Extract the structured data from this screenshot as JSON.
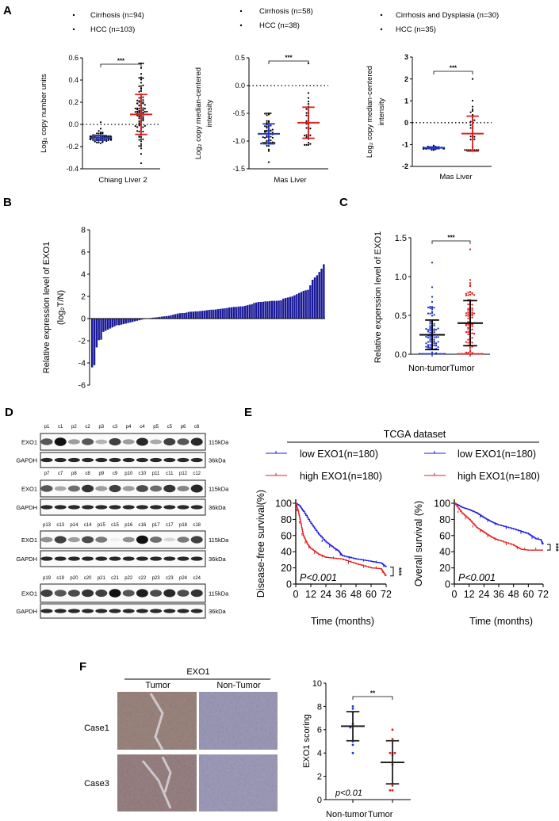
{
  "panel_labels": {
    "A": "A",
    "B": "B",
    "C": "C",
    "D": "D",
    "E": "E",
    "F": "F"
  },
  "chart_data": [
    {
      "id": "A1",
      "type": "scatter",
      "ylabel": "Log₂ copy number units",
      "xlabel": "Chiang Liver 2",
      "ylim": [
        -0.4,
        0.6
      ],
      "yticks": [
        0.6,
        0.4,
        0.2,
        0.0,
        -0.2,
        -0.4
      ],
      "ytick_labels": [
        "0.6",
        "0.4",
        "0.2",
        "0.0",
        "-0.2",
        "-0.4"
      ],
      "reference_line": 0,
      "significance": "***",
      "groups": [
        {
          "name": "Cirrhosis (n=94)",
          "n": 94,
          "mean": -0.12,
          "sd": 0.02,
          "min": -0.17,
          "max": 0.02,
          "bar_color": "#2233cc"
        },
        {
          "name": "HCC (n=103)",
          "n": 103,
          "mean": 0.09,
          "sd": 0.18,
          "min": -0.35,
          "max": 0.55,
          "bar_color": "#e02020"
        }
      ]
    },
    {
      "id": "A2",
      "type": "scatter",
      "ylabel": [
        "Log₂ copy median-centered",
        "intensity"
      ],
      "xlabel": "Mas Liver",
      "ylim": [
        -1.5,
        0.5
      ],
      "yticks": [
        0.5,
        0.0,
        -0.5,
        -1.0,
        -1.5
      ],
      "ytick_labels": [
        "0.5",
        "0.0",
        "-0.5",
        "-1.0",
        "-1.5"
      ],
      "reference_line": 0,
      "significance": "***",
      "groups": [
        {
          "name": "Cirrhosis (n=58)",
          "n": 58,
          "mean": -0.87,
          "sd": 0.18,
          "min": -1.38,
          "max": -0.5,
          "bar_color": "#2233cc"
        },
        {
          "name": "HCC (n=38)",
          "n": 38,
          "mean": -0.67,
          "sd": 0.28,
          "min": -1.07,
          "max": 0.4,
          "bar_color": "#e02020"
        }
      ]
    },
    {
      "id": "A3",
      "type": "scatter",
      "ylabel": [
        "Log₂ copy median-centered",
        "intensity"
      ],
      "xlabel": "Mas Liver",
      "ylim": [
        -2,
        3
      ],
      "yticks": [
        3,
        2,
        1,
        0,
        -1,
        -2
      ],
      "ytick_labels": [
        "3",
        "2",
        "1",
        "0",
        "-1",
        "-2"
      ],
      "reference_line": 0,
      "significance": "***",
      "groups": [
        {
          "name": "Cirrhosis and Dysplasia (n=30)",
          "n": 30,
          "mean": -1.15,
          "sd": 0.04,
          "min": -1.25,
          "max": -1.05,
          "bar_color": "#2233cc"
        },
        {
          "name": "HCC (n=35)",
          "n": 35,
          "mean": -0.5,
          "sd": 0.8,
          "min": -1.25,
          "max": 2.0,
          "bar_color": "#e02020"
        }
      ]
    },
    {
      "id": "B",
      "type": "bar",
      "ylabel": [
        "Relative expression level of EXO1",
        "(log₂T/N)"
      ],
      "ylim": [
        -6,
        8
      ],
      "yticks": [
        8,
        6,
        4,
        2,
        0,
        -2,
        -4,
        -6
      ],
      "ytick_labels": [
        "8",
        "6",
        "4",
        "2",
        "0",
        "-2",
        "-4",
        "-6"
      ],
      "bar_color": "#1a1a99",
      "values": [
        -4.4,
        -4.2,
        -2.6,
        -1.95,
        -1.9,
        -1.2,
        -1.1,
        -1.0,
        -0.9,
        -0.8,
        -0.7,
        -0.6,
        -0.6,
        -0.55,
        -0.5,
        -0.45,
        -0.4,
        -0.35,
        -0.3,
        -0.25,
        -0.2,
        -0.15,
        -0.1,
        -0.05,
        -0.02,
        0.02,
        0.05,
        0.08,
        0.1,
        0.12,
        0.15,
        0.18,
        0.2,
        0.22,
        0.25,
        0.3,
        0.35,
        0.4,
        0.45,
        0.48,
        0.5,
        0.5,
        0.55,
        0.6,
        0.62,
        0.63,
        0.65,
        0.65,
        0.68,
        0.7,
        0.72,
        0.75,
        0.78,
        0.8,
        0.8,
        0.82,
        0.85,
        0.88,
        0.9,
        0.92,
        0.95,
        1.0,
        1.02,
        1.05,
        1.05,
        1.08,
        1.1,
        1.1,
        1.15,
        1.2,
        1.25,
        1.3,
        1.4,
        1.45,
        1.5,
        1.5,
        1.52,
        1.55,
        1.55,
        1.58,
        1.6,
        1.6,
        1.6,
        1.62,
        1.65,
        1.8,
        1.85,
        1.9,
        1.95,
        2.0,
        2.1,
        2.2,
        2.3,
        2.4,
        2.5,
        2.55,
        2.6,
        3.0,
        3.5,
        3.7,
        3.9,
        4.2,
        4.5,
        4.9
      ]
    },
    {
      "id": "C",
      "type": "scatter",
      "ylabel": "Relative experssion level of EXO1",
      "categories": [
        "Non-tumor",
        "Tumor"
      ],
      "ylim": [
        0,
        1.5
      ],
      "yticks": [
        1.5,
        1.0,
        0.5,
        0.0
      ],
      "ytick_labels": [
        "1.5",
        "1.0",
        "0.5",
        "0.0"
      ],
      "significance": "***",
      "groups": [
        {
          "name": "Non-tumor",
          "mean": 0.25,
          "sd": 0.19,
          "min": 0.0,
          "max": 1.18,
          "point_color": "#2233cc"
        },
        {
          "name": "Tumor",
          "mean": 0.4,
          "sd": 0.29,
          "min": 0.0,
          "max": 1.35,
          "point_color": "#e02020"
        }
      ]
    },
    {
      "id": "E1",
      "type": "line",
      "title": "TCGA dataset",
      "ylabel": "Disease-free survival(%)",
      "xlabel": "Time (months)",
      "xlim": [
        0,
        72
      ],
      "ylim": [
        0,
        100
      ],
      "xticks": [
        0,
        12,
        24,
        36,
        48,
        60,
        72
      ],
      "yticks": [
        100,
        80,
        60,
        40,
        20,
        0
      ],
      "annotation": "P<0.001",
      "significance": "***",
      "series": [
        {
          "name": "low EXO1(n=180)",
          "color": "#1a1adf",
          "x": [
            0,
            3,
            6,
            12,
            18,
            24,
            30,
            34,
            37,
            48,
            60,
            68,
            72
          ],
          "y": [
            100,
            97,
            90,
            75,
            62,
            52,
            45,
            41,
            35,
            31,
            28,
            26,
            21
          ]
        },
        {
          "name": "high EXO1(n=180)",
          "color": "#e02020",
          "x": [
            0,
            2,
            4,
            6,
            9,
            12,
            18,
            24,
            36,
            48,
            60,
            68,
            70,
            72
          ],
          "y": [
            100,
            90,
            75,
            60,
            50,
            44,
            37,
            33,
            31,
            25,
            20,
            19,
            14,
            10
          ]
        }
      ]
    },
    {
      "id": "E2",
      "type": "line",
      "ylabel": "Overall survival (%)",
      "xlabel": "Time (months)",
      "xlim": [
        0,
        72
      ],
      "ylim": [
        0,
        100
      ],
      "xticks": [
        0,
        12,
        24,
        36,
        48,
        60,
        72
      ],
      "yticks": [
        100,
        80,
        60,
        40,
        20,
        0
      ],
      "annotation": "P<0.001",
      "significance": "***",
      "series": [
        {
          "name": "low EXO1(n=180)",
          "color": "#1a1adf",
          "x": [
            0,
            6,
            12,
            18,
            24,
            30,
            36,
            48,
            60,
            66,
            70,
            72
          ],
          "y": [
            100,
            95,
            92,
            88,
            82,
            77,
            73,
            68,
            62,
            56,
            55,
            49
          ]
        },
        {
          "name": "high EXO1(n=180)",
          "color": "#e02020",
          "x": [
            0,
            6,
            12,
            18,
            24,
            30,
            36,
            48,
            54,
            60,
            72
          ],
          "y": [
            100,
            88,
            80,
            70,
            64,
            58,
            54,
            48,
            43,
            42,
            42
          ]
        }
      ]
    },
    {
      "id": "F",
      "type": "scatter",
      "ylabel": "EXO1 scoring",
      "categories": [
        "Non-tumor",
        "Tumor"
      ],
      "ylim": [
        0,
        10
      ],
      "yticks": [
        10,
        8,
        6,
        4,
        2,
        0
      ],
      "ytick_labels": [
        "10",
        "8",
        "6",
        "4",
        "2",
        "0"
      ],
      "annotation": "p<0.01",
      "significance": "**",
      "groups": [
        {
          "name": "Non-tumor",
          "values": [
            8.0,
            7.8,
            7.5,
            6.5,
            6.3,
            6.2,
            5.0,
            4.7,
            4.0
          ],
          "mean": 6.3,
          "sd": 1.25,
          "point_color": "#2233cc"
        },
        {
          "name": "Tumor",
          "values": [
            6.0,
            5.2,
            4.0,
            4.0,
            4.0,
            3.8,
            3.0,
            1.2,
            0.8,
            0.8
          ],
          "mean": 3.2,
          "sd": 1.85,
          "point_color": "#e02020"
        }
      ]
    }
  ],
  "blot": {
    "rows": [
      {
        "lanes": [
          "p1",
          "c1",
          "p2",
          "c2",
          "p3",
          "c3",
          "p4",
          "c4",
          "p5",
          "c5",
          "p6",
          "c6"
        ],
        "exo1_intensity": [
          0.7,
          1.0,
          0.4,
          0.7,
          0.3,
          0.8,
          0.4,
          0.9,
          0.35,
          0.8,
          0.7,
          0.9
        ]
      },
      {
        "lanes": [
          "p7",
          "c7",
          "p8",
          "c8",
          "p9",
          "c9",
          "p10",
          "c10",
          "p11",
          "c11",
          "p12",
          "c12"
        ],
        "exo1_intensity": [
          0.7,
          0.35,
          0.6,
          0.85,
          0.4,
          0.8,
          0.4,
          0.75,
          0.6,
          0.85,
          0.5,
          0.9
        ]
      },
      {
        "lanes": [
          "p13",
          "c13",
          "p14",
          "c14",
          "p15",
          "c15",
          "p16",
          "c16",
          "p17",
          "c17",
          "p18",
          "c18"
        ],
        "exo1_intensity": [
          0.45,
          0.8,
          0.4,
          0.75,
          0.55,
          0.05,
          0.45,
          1.0,
          0.6,
          0.15,
          0.55,
          0.8
        ]
      },
      {
        "lanes": [
          "p19",
          "c19",
          "p20",
          "c20",
          "p21",
          "c21",
          "p22",
          "c22",
          "p23",
          "c23",
          "p24",
          "c24"
        ],
        "exo1_intensity": [
          0.8,
          0.7,
          0.75,
          0.85,
          0.8,
          1.0,
          0.7,
          0.95,
          0.75,
          0.9,
          0.75,
          0.85
        ]
      }
    ],
    "protein_labels": [
      "EXO1",
      "GAPDH"
    ],
    "size_labels": [
      "115kDa",
      "36kDa"
    ]
  },
  "ihc": {
    "title": "EXO1",
    "columns": [
      "Tumor",
      "Non-Tumor"
    ],
    "rows": [
      "Case1",
      "Case3"
    ]
  }
}
